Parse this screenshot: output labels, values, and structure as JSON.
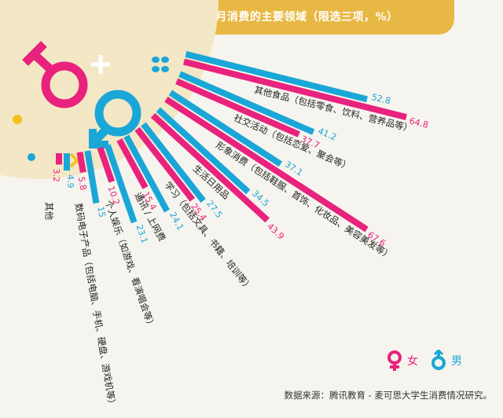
{
  "title": "不同性别在校大学生每月消费的主要领域（限选三项，%）",
  "legend": {
    "female": "女",
    "male": "男"
  },
  "source": "数据来源：腾讯教育 - 麦可思大学生消费情况研究。",
  "colors": {
    "female": "#e8227d",
    "male": "#1aa7d8",
    "accent": "#e8b844"
  },
  "chart_data": {
    "type": "bar",
    "categories": [
      "其他食品（包括零食、饮料、营养品等）",
      "社交活动（包括恋爱、聚会等）",
      "形象消费（包括鞋服、首饰、化妆品、美容美发等）",
      "生活日用品",
      "学习（包括文具、书籍、培训等）",
      "通讯 / 上网费",
      "个人娱乐（如游戏、看演唱会等）",
      "数码电子产品（包括电脑、手机、硬盘、游戏机等）",
      "其他"
    ],
    "series": [
      {
        "name": "男",
        "values": [
          52.8,
          41.2,
          37.1,
          34.5,
          27.5,
          24.1,
          23.1,
          15,
          4.9
        ]
      },
      {
        "name": "女",
        "values": [
          64.8,
          37.7,
          67.6,
          43.9,
          25.4,
          15.4,
          10.2,
          5.8,
          3.2
        ]
      }
    ]
  }
}
